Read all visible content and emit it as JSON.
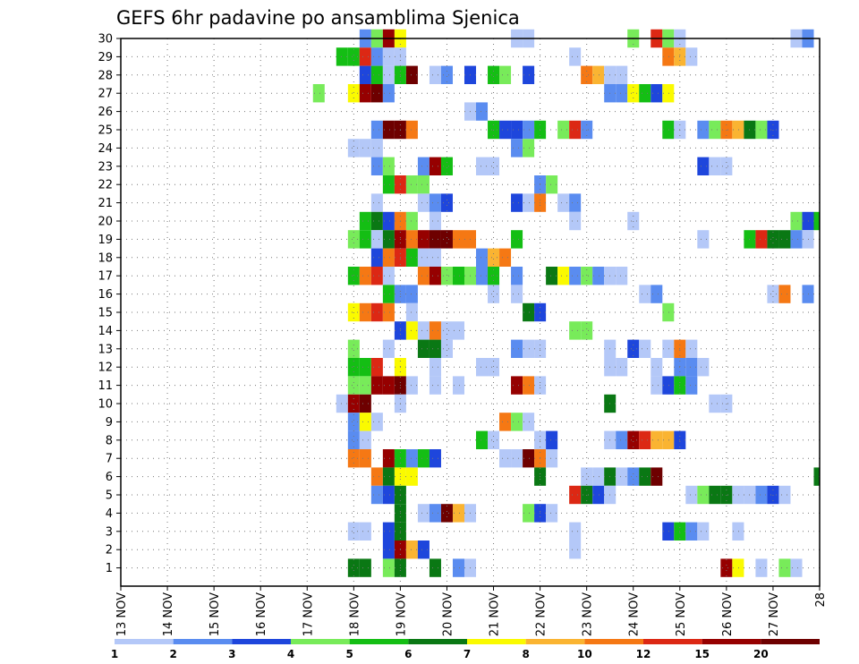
{
  "chart_data": {
    "type": "heatmap",
    "title": "GEFS 6hr padavine po ansamblima Sjenica",
    "xlabel": "",
    "ylabel": "",
    "x_tick_labels": [
      "13 NOV",
      "14 NOV",
      "15 NOV",
      "16 NOV",
      "17 NOV",
      "18 NOV",
      "19 NOV",
      "20 NOV",
      "21 NOV",
      "22 NOV",
      "23 NOV",
      "24 NOV",
      "25 NOV",
      "26 NOV",
      "27 NOV",
      "28"
    ],
    "x_range_days": [
      13,
      28
    ],
    "y_tick_labels": [
      "1",
      "2",
      "3",
      "4",
      "5",
      "6",
      "7",
      "8",
      "9",
      "10",
      "11",
      "12",
      "13",
      "14",
      "15",
      "16",
      "17",
      "18",
      "19",
      "20",
      "21",
      "22",
      "23",
      "24",
      "25",
      "26",
      "27",
      "28",
      "29",
      "30"
    ],
    "y_range": [
      0,
      30
    ],
    "grid": true,
    "colorbar": {
      "labels": [
        "1",
        "2",
        "3",
        "4",
        "5",
        "6",
        "7",
        "8",
        "10",
        "12",
        "15",
        "20"
      ],
      "colors": [
        "#b4c8f8",
        "#5a8cf0",
        "#1e46dc",
        "#78eb5a",
        "#14be14",
        "#0a7814",
        "#fafa00",
        "#fab432",
        "#f57814",
        "#dc2814",
        "#960000",
        "#6e0000"
      ]
    },
    "cells": [
      [
        30,
        18.25,
        2
      ],
      [
        30,
        18.5,
        4
      ],
      [
        30,
        18.75,
        11
      ],
      [
        30,
        19.0,
        7
      ],
      [
        30,
        21.5,
        1
      ],
      [
        30,
        21.75,
        1
      ],
      [
        30,
        24.0,
        4
      ],
      [
        30,
        24.5,
        10
      ],
      [
        30,
        24.75,
        4
      ],
      [
        30,
        25.0,
        1
      ],
      [
        30,
        27.5,
        1
      ],
      [
        30,
        27.75,
        2
      ],
      [
        29,
        17.75,
        5
      ],
      [
        29,
        18.0,
        5
      ],
      [
        29,
        18.25,
        10
      ],
      [
        29,
        18.5,
        2
      ],
      [
        29,
        18.75,
        1
      ],
      [
        29,
        19.0,
        1
      ],
      [
        29,
        22.75,
        1
      ],
      [
        29,
        24.75,
        9
      ],
      [
        29,
        25.0,
        8
      ],
      [
        29,
        25.25,
        1
      ],
      [
        28,
        18.25,
        3
      ],
      [
        28,
        18.5,
        5
      ],
      [
        28,
        18.75,
        1
      ],
      [
        28,
        19.0,
        5
      ],
      [
        28,
        19.25,
        12
      ],
      [
        28,
        19.75,
        1
      ],
      [
        28,
        20.0,
        2
      ],
      [
        28,
        20.5,
        3
      ],
      [
        28,
        21.0,
        5
      ],
      [
        28,
        21.25,
        4
      ],
      [
        28,
        21.75,
        3
      ],
      [
        28,
        23.0,
        9
      ],
      [
        28,
        23.25,
        8
      ],
      [
        28,
        23.5,
        1
      ],
      [
        28,
        23.75,
        1
      ],
      [
        27,
        17.25,
        4
      ],
      [
        27,
        18.0,
        7
      ],
      [
        27,
        18.25,
        11
      ],
      [
        27,
        18.5,
        12
      ],
      [
        27,
        18.75,
        2
      ],
      [
        27,
        23.5,
        2
      ],
      [
        27,
        23.75,
        2
      ],
      [
        27,
        24.0,
        7
      ],
      [
        27,
        24.25,
        5
      ],
      [
        27,
        24.5,
        3
      ],
      [
        27,
        24.75,
        7
      ],
      [
        26,
        20.5,
        1
      ],
      [
        26,
        20.75,
        2
      ],
      [
        25,
        18.5,
        2
      ],
      [
        25,
        18.75,
        12
      ],
      [
        25,
        19.0,
        12
      ],
      [
        25,
        19.25,
        9
      ],
      [
        25,
        21.0,
        5
      ],
      [
        25,
        21.25,
        3
      ],
      [
        25,
        21.5,
        3
      ],
      [
        25,
        21.75,
        2
      ],
      [
        25,
        22.0,
        5
      ],
      [
        25,
        22.5,
        4
      ],
      [
        25,
        22.75,
        10
      ],
      [
        25,
        23.0,
        2
      ],
      [
        25,
        24.75,
        5
      ],
      [
        25,
        25.0,
        1
      ],
      [
        25,
        25.5,
        2
      ],
      [
        25,
        25.75,
        4
      ],
      [
        25,
        26.0,
        9
      ],
      [
        25,
        26.25,
        8
      ],
      [
        25,
        26.5,
        6
      ],
      [
        25,
        26.75,
        4
      ],
      [
        25,
        27.0,
        3
      ],
      [
        24,
        18.0,
        1
      ],
      [
        24,
        18.25,
        1
      ],
      [
        24,
        18.5,
        1
      ],
      [
        24,
        21.5,
        2
      ],
      [
        24,
        21.75,
        4
      ],
      [
        23,
        18.5,
        2
      ],
      [
        23,
        18.75,
        4
      ],
      [
        23,
        19.5,
        2
      ],
      [
        23,
        19.75,
        11
      ],
      [
        23,
        20.0,
        5
      ],
      [
        23,
        20.75,
        1
      ],
      [
        23,
        21.0,
        1
      ],
      [
        23,
        25.5,
        3
      ],
      [
        23,
        25.75,
        1
      ],
      [
        23,
        26.0,
        1
      ],
      [
        22,
        18.75,
        5
      ],
      [
        22,
        19.0,
        10
      ],
      [
        22,
        19.25,
        4
      ],
      [
        22,
        19.5,
        4
      ],
      [
        22,
        22.0,
        2
      ],
      [
        22,
        22.25,
        4
      ],
      [
        21,
        18.5,
        1
      ],
      [
        21,
        19.5,
        1
      ],
      [
        21,
        19.75,
        2
      ],
      [
        21,
        20.0,
        3
      ],
      [
        21,
        21.5,
        3
      ],
      [
        21,
        21.75,
        1
      ],
      [
        21,
        22.0,
        9
      ],
      [
        21,
        22.5,
        1
      ],
      [
        21,
        22.75,
        2
      ],
      [
        20,
        18.25,
        5
      ],
      [
        20,
        18.5,
        6
      ],
      [
        20,
        18.75,
        3
      ],
      [
        20,
        19.0,
        9
      ],
      [
        20,
        19.25,
        4
      ],
      [
        20,
        19.75,
        1
      ],
      [
        20,
        22.75,
        1
      ],
      [
        20,
        24.0,
        1
      ],
      [
        20,
        27.5,
        4
      ],
      [
        20,
        27.75,
        3
      ],
      [
        20,
        28.0,
        5
      ],
      [
        19,
        18.0,
        4
      ],
      [
        19,
        18.25,
        5
      ],
      [
        19,
        18.5,
        1
      ],
      [
        19,
        18.75,
        6
      ],
      [
        19,
        19.0,
        11
      ],
      [
        19,
        19.25,
        9
      ],
      [
        19,
        19.5,
        11
      ],
      [
        19,
        19.75,
        12
      ],
      [
        19,
        20.0,
        12
      ],
      [
        19,
        20.25,
        9
      ],
      [
        19,
        20.5,
        9
      ],
      [
        19,
        21.5,
        5
      ],
      [
        19,
        25.5,
        1
      ],
      [
        19,
        26.5,
        5
      ],
      [
        19,
        26.75,
        10
      ],
      [
        19,
        27.0,
        6
      ],
      [
        19,
        27.25,
        6
      ],
      [
        19,
        27.5,
        2
      ],
      [
        19,
        27.75,
        1
      ],
      [
        18,
        18.5,
        3
      ],
      [
        18,
        18.75,
        9
      ],
      [
        18,
        19.0,
        10
      ],
      [
        18,
        19.25,
        5
      ],
      [
        18,
        19.5,
        1
      ],
      [
        18,
        19.75,
        1
      ],
      [
        18,
        20.75,
        2
      ],
      [
        18,
        21.0,
        8
      ],
      [
        18,
        21.25,
        9
      ],
      [
        17,
        18.0,
        5
      ],
      [
        17,
        18.25,
        9
      ],
      [
        17,
        18.5,
        10
      ],
      [
        17,
        18.75,
        1
      ],
      [
        17,
        19.5,
        9
      ],
      [
        17,
        19.75,
        11
      ],
      [
        17,
        20.0,
        4
      ],
      [
        17,
        20.25,
        5
      ],
      [
        17,
        20.5,
        4
      ],
      [
        17,
        20.75,
        2
      ],
      [
        17,
        21.0,
        5
      ],
      [
        17,
        21.5,
        2
      ],
      [
        17,
        22.25,
        6
      ],
      [
        17,
        22.5,
        7
      ],
      [
        17,
        22.75,
        2
      ],
      [
        17,
        23.0,
        4
      ],
      [
        17,
        23.25,
        2
      ],
      [
        17,
        23.5,
        1
      ],
      [
        17,
        23.75,
        1
      ],
      [
        16,
        18.75,
        5
      ],
      [
        16,
        19.0,
        2
      ],
      [
        16,
        19.25,
        2
      ],
      [
        16,
        21.0,
        1
      ],
      [
        16,
        21.5,
        1
      ],
      [
        16,
        24.25,
        1
      ],
      [
        16,
        24.5,
        2
      ],
      [
        16,
        27.0,
        1
      ],
      [
        16,
        27.25,
        9
      ],
      [
        16,
        27.75,
        2
      ],
      [
        15,
        18.0,
        7
      ],
      [
        15,
        18.25,
        9
      ],
      [
        15,
        18.5,
        10
      ],
      [
        15,
        18.75,
        9
      ],
      [
        15,
        19.25,
        1
      ],
      [
        15,
        21.75,
        6
      ],
      [
        15,
        22.0,
        3
      ],
      [
        15,
        24.75,
        4
      ],
      [
        14,
        19.0,
        3
      ],
      [
        14,
        19.25,
        7
      ],
      [
        14,
        19.5,
        1
      ],
      [
        14,
        19.75,
        9
      ],
      [
        14,
        20.0,
        1
      ],
      [
        14,
        20.25,
        1
      ],
      [
        14,
        22.75,
        4
      ],
      [
        14,
        23.0,
        4
      ],
      [
        13,
        18.0,
        4
      ],
      [
        13,
        18.75,
        1
      ],
      [
        13,
        19.5,
        6
      ],
      [
        13,
        19.75,
        6
      ],
      [
        13,
        20.0,
        1
      ],
      [
        13,
        21.5,
        2
      ],
      [
        13,
        21.75,
        1
      ],
      [
        13,
        22.0,
        1
      ],
      [
        13,
        23.5,
        1
      ],
      [
        13,
        24.0,
        3
      ],
      [
        13,
        24.25,
        1
      ],
      [
        13,
        24.75,
        1
      ],
      [
        13,
        25.0,
        9
      ],
      [
        13,
        25.25,
        1
      ],
      [
        12,
        18.0,
        5
      ],
      [
        12,
        18.25,
        5
      ],
      [
        12,
        18.5,
        10
      ],
      [
        12,
        19.0,
        7
      ],
      [
        12,
        19.75,
        1
      ],
      [
        12,
        20.75,
        1
      ],
      [
        12,
        21.0,
        1
      ],
      [
        12,
        23.5,
        1
      ],
      [
        12,
        23.75,
        1
      ],
      [
        12,
        24.5,
        1
      ],
      [
        12,
        25.0,
        2
      ],
      [
        12,
        25.25,
        2
      ],
      [
        12,
        25.5,
        1
      ],
      [
        11,
        18.0,
        4
      ],
      [
        11,
        18.25,
        4
      ],
      [
        11,
        18.5,
        11
      ],
      [
        11,
        18.75,
        11
      ],
      [
        11,
        19.0,
        12
      ],
      [
        11,
        19.25,
        1
      ],
      [
        11,
        19.75,
        1
      ],
      [
        11,
        20.25,
        1
      ],
      [
        11,
        21.5,
        11
      ],
      [
        11,
        21.75,
        9
      ],
      [
        11,
        22.0,
        1
      ],
      [
        11,
        24.5,
        1
      ],
      [
        11,
        24.75,
        3
      ],
      [
        11,
        25.0,
        5
      ],
      [
        11,
        25.25,
        2
      ],
      [
        10,
        17.75,
        1
      ],
      [
        10,
        18.0,
        11
      ],
      [
        10,
        18.25,
        12
      ],
      [
        10,
        19.0,
        1
      ],
      [
        10,
        23.5,
        6
      ],
      [
        10,
        25.75,
        1
      ],
      [
        10,
        26.0,
        1
      ],
      [
        9,
        18.0,
        2
      ],
      [
        9,
        18.25,
        7
      ],
      [
        9,
        18.5,
        1
      ],
      [
        9,
        21.25,
        9
      ],
      [
        9,
        21.5,
        4
      ],
      [
        9,
        21.75,
        1
      ],
      [
        8,
        18.0,
        2
      ],
      [
        8,
        18.25,
        1
      ],
      [
        8,
        20.75,
        5
      ],
      [
        8,
        21.0,
        1
      ],
      [
        8,
        22.0,
        1
      ],
      [
        8,
        22.25,
        3
      ],
      [
        8,
        23.5,
        1
      ],
      [
        8,
        23.75,
        2
      ],
      [
        8,
        24.0,
        11
      ],
      [
        8,
        24.25,
        10
      ],
      [
        8,
        24.5,
        8
      ],
      [
        8,
        24.75,
        8
      ],
      [
        8,
        25.0,
        3
      ],
      [
        7,
        18.0,
        9
      ],
      [
        7,
        18.25,
        9
      ],
      [
        7,
        18.75,
        11
      ],
      [
        7,
        19.0,
        5
      ],
      [
        7,
        19.25,
        2
      ],
      [
        7,
        19.5,
        5
      ],
      [
        7,
        19.75,
        3
      ],
      [
        7,
        21.25,
        1
      ],
      [
        7,
        21.5,
        1
      ],
      [
        7,
        21.75,
        12
      ],
      [
        7,
        22.0,
        9
      ],
      [
        7,
        22.25,
        1
      ],
      [
        6,
        18.5,
        9
      ],
      [
        6,
        18.75,
        6
      ],
      [
        6,
        19.0,
        7
      ],
      [
        6,
        19.25,
        7
      ],
      [
        6,
        22.0,
        6
      ],
      [
        6,
        23.0,
        1
      ],
      [
        6,
        23.25,
        1
      ],
      [
        6,
        23.5,
        6
      ],
      [
        6,
        23.75,
        1
      ],
      [
        6,
        24.0,
        2
      ],
      [
        6,
        24.25,
        6
      ],
      [
        6,
        24.5,
        12
      ],
      [
        6,
        28.0,
        6
      ],
      [
        5,
        18.5,
        2
      ],
      [
        5,
        18.75,
        3
      ],
      [
        5,
        19.0,
        6
      ],
      [
        5,
        22.75,
        10
      ],
      [
        5,
        23.0,
        6
      ],
      [
        5,
        23.25,
        3
      ],
      [
        5,
        23.5,
        1
      ],
      [
        5,
        25.25,
        1
      ],
      [
        5,
        25.5,
        4
      ],
      [
        5,
        25.75,
        6
      ],
      [
        5,
        26.0,
        6
      ],
      [
        5,
        26.25,
        1
      ],
      [
        5,
        26.5,
        1
      ],
      [
        5,
        26.75,
        2
      ],
      [
        5,
        27.0,
        3
      ],
      [
        5,
        27.25,
        1
      ],
      [
        4,
        19.0,
        6
      ],
      [
        4,
        19.5,
        1
      ],
      [
        4,
        19.75,
        2
      ],
      [
        4,
        20.0,
        12
      ],
      [
        4,
        20.25,
        8
      ],
      [
        4,
        20.5,
        1
      ],
      [
        4,
        21.75,
        4
      ],
      [
        4,
        22.0,
        3
      ],
      [
        4,
        22.25,
        1
      ],
      [
        3,
        18.0,
        1
      ],
      [
        3,
        18.25,
        1
      ],
      [
        3,
        18.75,
        3
      ],
      [
        3,
        19.0,
        6
      ],
      [
        3,
        22.75,
        1
      ],
      [
        3,
        24.75,
        3
      ],
      [
        3,
        25.0,
        5
      ],
      [
        3,
        25.25,
        2
      ],
      [
        3,
        25.5,
        1
      ],
      [
        3,
        26.25,
        1
      ],
      [
        2,
        18.75,
        3
      ],
      [
        2,
        19.0,
        11
      ],
      [
        2,
        19.25,
        8
      ],
      [
        2,
        19.5,
        3
      ],
      [
        2,
        22.75,
        1
      ],
      [
        1,
        18.0,
        6
      ],
      [
        1,
        18.25,
        6
      ],
      [
        1,
        18.75,
        4
      ],
      [
        1,
        19.0,
        6
      ],
      [
        1,
        19.75,
        6
      ],
      [
        1,
        20.25,
        2
      ],
      [
        1,
        20.5,
        1
      ],
      [
        1,
        26.0,
        11
      ],
      [
        1,
        26.25,
        7
      ],
      [
        1,
        26.75,
        1
      ],
      [
        1,
        27.25,
        4
      ],
      [
        1,
        27.5,
        1
      ]
    ]
  }
}
